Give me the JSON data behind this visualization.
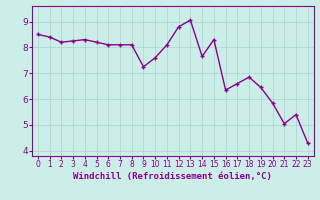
{
  "x": [
    0,
    1,
    2,
    3,
    4,
    5,
    6,
    7,
    8,
    9,
    10,
    11,
    12,
    13,
    14,
    15,
    16,
    17,
    18,
    19,
    20,
    21,
    22,
    23
  ],
  "y": [
    8.5,
    8.4,
    8.2,
    8.25,
    8.3,
    8.2,
    8.1,
    8.1,
    8.1,
    7.25,
    7.6,
    8.1,
    8.8,
    9.05,
    7.65,
    8.3,
    6.35,
    6.6,
    6.85,
    6.45,
    5.85,
    5.05,
    5.4,
    4.3
  ],
  "line_color": "#8B008B",
  "marker": "+",
  "marker_color": "#8B008B",
  "bg_color": "#cceee8",
  "grid_color": "#aad4cc",
  "xlabel": "Windchill (Refroidissement éolien,°C)",
  "ylabel": "",
  "xlim": [
    -0.5,
    23.5
  ],
  "ylim": [
    3.8,
    9.6
  ],
  "yticks": [
    4,
    5,
    6,
    7,
    8,
    9
  ],
  "xticks": [
    0,
    1,
    2,
    3,
    4,
    5,
    6,
    7,
    8,
    9,
    10,
    11,
    12,
    13,
    14,
    15,
    16,
    17,
    18,
    19,
    20,
    21,
    22,
    23
  ],
  "tick_color": "#8B008B",
  "label_color": "#8B008B",
  "spine_color": "#8B008B",
  "line_width": 1.0,
  "marker_size": 3.5,
  "xlabel_fontsize": 6.5,
  "tick_fontsize_x": 5.5,
  "tick_fontsize_y": 6.5
}
